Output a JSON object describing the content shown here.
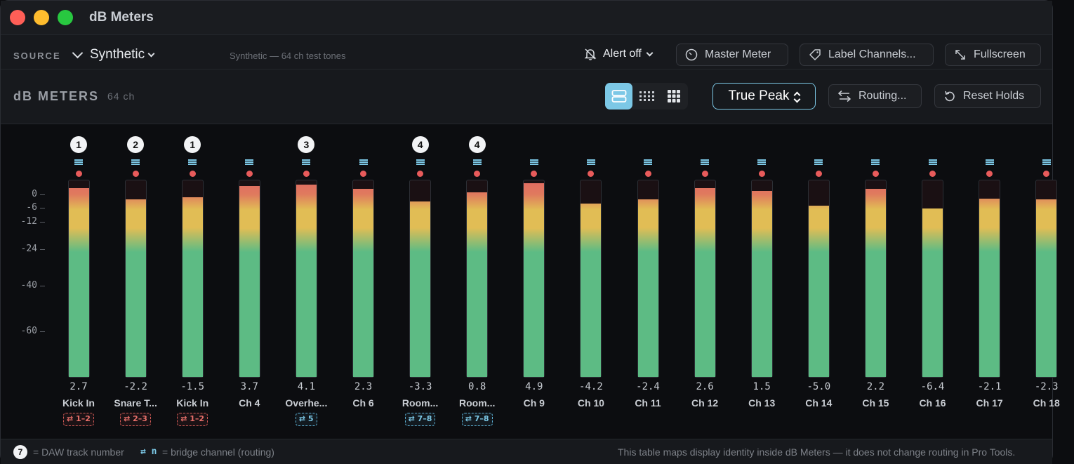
{
  "window": {
    "title": "dB Meters"
  },
  "source": {
    "label": "SOURCE",
    "selected": "Synthetic",
    "description": "Synthetic — 64 ch test tones",
    "alert_label": "Alert off",
    "buttons": {
      "master_meter": "Master Meter",
      "label_channels": "Label Channels...",
      "fullscreen": "Fullscreen"
    }
  },
  "header": {
    "title": "dB METERS",
    "count": "64  ch",
    "meter_mode": "True Peak",
    "routing_label": "Routing...",
    "reset_label": "Reset Holds",
    "view_modes": [
      "list",
      "grid-small",
      "grid-large"
    ],
    "active_view": "list"
  },
  "scale": {
    "min_db": -80,
    "max_db": 6,
    "labels": [
      "0",
      "-6",
      "-12",
      "-24",
      "-40",
      "-60"
    ]
  },
  "channels": [
    {
      "name": "Kick In",
      "peak": "2.7",
      "db": 2.7,
      "track": "1",
      "route": "⇄ 1–2",
      "route_color": "red"
    },
    {
      "name": "Snare T...",
      "peak": "-2.2",
      "db": -2.2,
      "track": "2",
      "route": "⇄ 2–3",
      "route_color": "red"
    },
    {
      "name": "Kick In",
      "peak": "-1.5",
      "db": -1.5,
      "track": "1",
      "route": "⇄ 1–2",
      "route_color": "red"
    },
    {
      "name": "Ch 4",
      "peak": "3.7",
      "db": 3.7
    },
    {
      "name": "Overhe...",
      "peak": "4.1",
      "db": 4.1,
      "track": "3",
      "route": "⇄ 5",
      "route_color": "blue"
    },
    {
      "name": "Ch 6",
      "peak": "2.3",
      "db": 2.3
    },
    {
      "name": "Room...",
      "peak": "-3.3",
      "db": -3.3,
      "track": "4",
      "route": "⇄ 7–8",
      "route_color": "blue"
    },
    {
      "name": "Room...",
      "peak": "0.8",
      "db": 0.8,
      "track": "4",
      "route": "⇄ 7–8",
      "route_color": "blue"
    },
    {
      "name": "Ch 9",
      "peak": "4.9",
      "db": 4.9
    },
    {
      "name": "Ch 10",
      "peak": "-4.2",
      "db": -4.2
    },
    {
      "name": "Ch 11",
      "peak": "-2.4",
      "db": -2.4
    },
    {
      "name": "Ch 12",
      "peak": "2.6",
      "db": 2.6
    },
    {
      "name": "Ch 13",
      "peak": "1.5",
      "db": 1.5
    },
    {
      "name": "Ch 14",
      "peak": "-5.0",
      "db": -5.0
    },
    {
      "name": "Ch 15",
      "peak": "2.2",
      "db": 2.2
    },
    {
      "name": "Ch 16",
      "peak": "-6.4",
      "db": -6.4
    },
    {
      "name": "Ch 17",
      "peak": "-2.1",
      "db": -2.1
    },
    {
      "name": "Ch 18",
      "peak": "-2.3",
      "db": -2.3
    }
  ],
  "colors": {
    "accent": "#7cc8e6",
    "green": "#5dbb84",
    "yellow": "#e1bd55",
    "red": "#e26a62",
    "clip": "#e85b5b"
  },
  "footer": {
    "badge": "7",
    "track_legend": "= DAW track number",
    "bridge_symbol": "⇄ n",
    "bridge_legend": "= bridge channel (routing)",
    "note": "This table maps display identity inside dB Meters — it does not change routing in Pro Tools."
  }
}
